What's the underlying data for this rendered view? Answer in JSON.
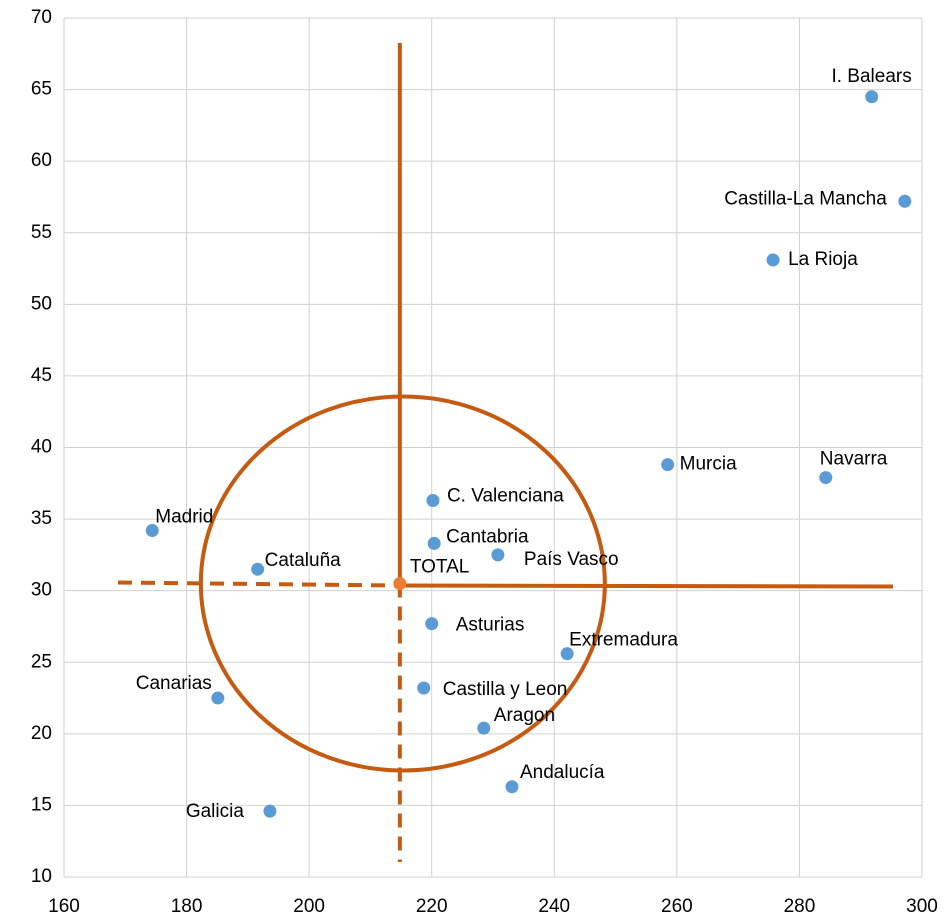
{
  "chart_data": {
    "type": "scatter",
    "points": [
      {
        "label": "I. Balears",
        "x": 291.8,
        "y": 64.5,
        "color": "#5b9bd5"
      },
      {
        "label": "Castilla-La Mancha",
        "x": 297.2,
        "y": 57.2,
        "color": "#5b9bd5"
      },
      {
        "label": "La Rioja",
        "x": 275.7,
        "y": 53.1,
        "color": "#5b9bd5"
      },
      {
        "label": "Murcia",
        "x": 258.5,
        "y": 38.8,
        "color": "#5b9bd5"
      },
      {
        "label": "Navarra",
        "x": 284.3,
        "y": 37.9,
        "color": "#5b9bd5"
      },
      {
        "label": "C. Valenciana",
        "x": 220.2,
        "y": 36.3,
        "color": "#5b9bd5"
      },
      {
        "label": "Madrid",
        "x": 174.4,
        "y": 34.2,
        "color": "#5b9bd5"
      },
      {
        "label": "Cantabria",
        "x": 220.4,
        "y": 33.3,
        "color": "#5b9bd5"
      },
      {
        "label": "País Vasco",
        "x": 230.8,
        "y": 32.5,
        "color": "#5b9bd5"
      },
      {
        "label": "Cataluña",
        "x": 191.6,
        "y": 31.5,
        "color": "#5b9bd5"
      },
      {
        "label": "TOTAL",
        "x": 214.8,
        "y": 30.5,
        "color": "#ed7d31"
      },
      {
        "label": "Asturias",
        "x": 220.0,
        "y": 27.7,
        "color": "#5b9bd5"
      },
      {
        "label": "Extremadura",
        "x": 242.1,
        "y": 25.6,
        "color": "#5b9bd5"
      },
      {
        "label": "Castilla y Leon",
        "x": 218.7,
        "y": 23.2,
        "color": "#5b9bd5"
      },
      {
        "label": "Canarias",
        "x": 185.1,
        "y": 22.5,
        "color": "#5b9bd5"
      },
      {
        "label": "Aragon",
        "x": 228.5,
        "y": 20.4,
        "color": "#5b9bd5"
      },
      {
        "label": "Andalucía",
        "x": 233.1,
        "y": 16.3,
        "color": "#5b9bd5"
      },
      {
        "label": "Galicia",
        "x": 193.6,
        "y": 14.6,
        "color": "#5b9bd5"
      }
    ],
    "xlim": [
      160,
      300
    ],
    "xticks": [
      160,
      180,
      200,
      220,
      240,
      260,
      280,
      300
    ],
    "ylim": [
      10,
      70
    ],
    "yticks": [
      10,
      15,
      20,
      25,
      30,
      35,
      40,
      45,
      50,
      55,
      60,
      65,
      70
    ],
    "grid": true,
    "guide_color": "#c55a11"
  }
}
